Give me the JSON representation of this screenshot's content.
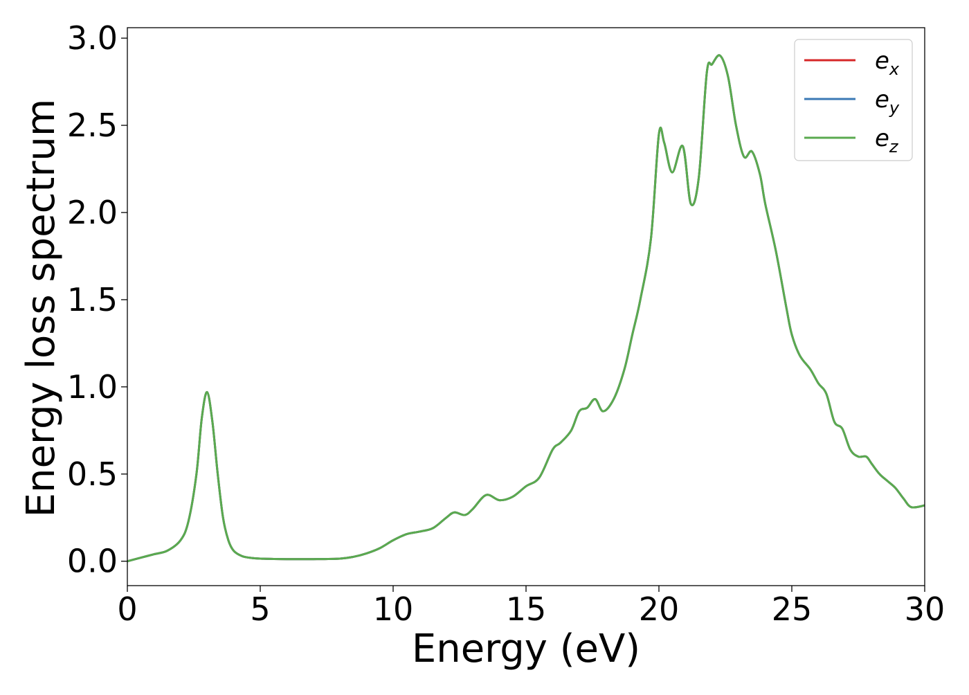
{
  "chart_data": {
    "type": "line",
    "title": "",
    "xlabel": "Energy (eV)",
    "ylabel": "Energy loss spectrum",
    "xlim": [
      0,
      30
    ],
    "ylim": [
      -0.14,
      3.06
    ],
    "xticks": [
      0,
      5,
      10,
      15,
      20,
      25,
      30
    ],
    "xtick_labels": [
      "0",
      "5",
      "10",
      "15",
      "20",
      "25",
      "30"
    ],
    "yticks": [
      0.0,
      0.5,
      1.0,
      1.5,
      2.0,
      2.5,
      3.0
    ],
    "ytick_labels": [
      "0.0",
      "0.5",
      "1.0",
      "1.5",
      "2.0",
      "2.5",
      "3.0"
    ],
    "grid": false,
    "legend": {
      "position": "upper right",
      "entries": [
        {
          "base": "e",
          "sub": "x",
          "color": "#d62728"
        },
        {
          "base": "e",
          "sub": "y",
          "color": "#3a78b5"
        },
        {
          "base": "e",
          "sub": "z",
          "color": "#5aaa4f"
        }
      ]
    },
    "series": [
      {
        "color": "#d62728",
        "x": [
          0,
          0.5,
          1,
          1.5,
          2,
          2.3,
          2.6,
          2.8,
          3,
          3.2,
          3.4,
          3.6,
          3.8,
          4,
          4.3,
          4.6,
          5,
          6,
          7,
          8,
          8.5,
          9,
          9.5,
          10,
          10.5,
          11,
          11.5,
          12,
          12.3,
          12.7,
          13,
          13.5,
          14,
          14.5,
          15,
          15.5,
          16,
          16.3,
          16.7,
          17,
          17.3,
          17.6,
          17.9,
          18.3,
          18.7,
          19,
          19.3,
          19.7,
          20,
          20.2,
          20.5,
          20.9,
          21.2,
          21.5,
          21.8,
          22,
          22.3,
          22.6,
          22.9,
          23.2,
          23.5,
          23.8,
          24,
          24.4,
          24.8,
          25,
          25.3,
          25.7,
          26,
          26.3,
          26.6,
          26.9,
          27.2,
          27.5,
          27.8,
          28,
          28.3,
          28.6,
          28.9,
          29.2,
          29.5,
          30
        ],
        "y": [
          0.0,
          0.02,
          0.04,
          0.06,
          0.12,
          0.23,
          0.5,
          0.82,
          0.97,
          0.8,
          0.5,
          0.25,
          0.12,
          0.06,
          0.03,
          0.02,
          0.015,
          0.012,
          0.012,
          0.015,
          0.025,
          0.045,
          0.075,
          0.12,
          0.155,
          0.17,
          0.19,
          0.25,
          0.28,
          0.265,
          0.3,
          0.38,
          0.35,
          0.37,
          0.43,
          0.48,
          0.64,
          0.68,
          0.75,
          0.86,
          0.88,
          0.93,
          0.86,
          0.93,
          1.1,
          1.3,
          1.5,
          1.85,
          2.45,
          2.4,
          2.23,
          2.38,
          2.05,
          2.2,
          2.8,
          2.85,
          2.9,
          2.78,
          2.5,
          2.32,
          2.35,
          2.22,
          2.05,
          1.78,
          1.45,
          1.3,
          1.18,
          1.1,
          1.02,
          0.96,
          0.8,
          0.76,
          0.64,
          0.6,
          0.6,
          0.56,
          0.5,
          0.46,
          0.42,
          0.36,
          0.31,
          0.32
        ]
      },
      {
        "color": "#3a78b5",
        "x": [
          0,
          0.5,
          1,
          1.5,
          2,
          2.3,
          2.6,
          2.8,
          3,
          3.2,
          3.4,
          3.6,
          3.8,
          4,
          4.3,
          4.6,
          5,
          6,
          7,
          8,
          8.5,
          9,
          9.5,
          10,
          10.5,
          11,
          11.5,
          12,
          12.3,
          12.7,
          13,
          13.5,
          14,
          14.5,
          15,
          15.5,
          16,
          16.3,
          16.7,
          17,
          17.3,
          17.6,
          17.9,
          18.3,
          18.7,
          19,
          19.3,
          19.7,
          20,
          20.2,
          20.5,
          20.9,
          21.2,
          21.5,
          21.8,
          22,
          22.3,
          22.6,
          22.9,
          23.2,
          23.5,
          23.8,
          24,
          24.4,
          24.8,
          25,
          25.3,
          25.7,
          26,
          26.3,
          26.6,
          26.9,
          27.2,
          27.5,
          27.8,
          28,
          28.3,
          28.6,
          28.9,
          29.2,
          29.5,
          30
        ],
        "y": [
          0.0,
          0.02,
          0.04,
          0.06,
          0.12,
          0.23,
          0.5,
          0.82,
          0.97,
          0.8,
          0.5,
          0.25,
          0.12,
          0.06,
          0.03,
          0.02,
          0.015,
          0.012,
          0.012,
          0.015,
          0.025,
          0.045,
          0.075,
          0.12,
          0.155,
          0.17,
          0.19,
          0.25,
          0.28,
          0.265,
          0.3,
          0.38,
          0.35,
          0.37,
          0.43,
          0.48,
          0.64,
          0.68,
          0.75,
          0.86,
          0.88,
          0.93,
          0.86,
          0.93,
          1.1,
          1.3,
          1.5,
          1.85,
          2.45,
          2.4,
          2.23,
          2.38,
          2.05,
          2.2,
          2.8,
          2.85,
          2.9,
          2.78,
          2.5,
          2.32,
          2.35,
          2.22,
          2.05,
          1.78,
          1.45,
          1.3,
          1.18,
          1.1,
          1.02,
          0.96,
          0.8,
          0.76,
          0.64,
          0.6,
          0.6,
          0.56,
          0.5,
          0.46,
          0.42,
          0.36,
          0.31,
          0.32
        ]
      },
      {
        "color": "#5aaa4f",
        "x": [
          0,
          0.5,
          1,
          1.5,
          2,
          2.3,
          2.6,
          2.8,
          3,
          3.2,
          3.4,
          3.6,
          3.8,
          4,
          4.3,
          4.6,
          5,
          6,
          7,
          8,
          8.5,
          9,
          9.5,
          10,
          10.5,
          11,
          11.5,
          12,
          12.3,
          12.7,
          13,
          13.5,
          14,
          14.5,
          15,
          15.5,
          16,
          16.3,
          16.7,
          17,
          17.3,
          17.6,
          17.9,
          18.3,
          18.7,
          19,
          19.3,
          19.7,
          20,
          20.2,
          20.5,
          20.9,
          21.2,
          21.5,
          21.8,
          22,
          22.3,
          22.6,
          22.9,
          23.2,
          23.5,
          23.8,
          24,
          24.4,
          24.8,
          25,
          25.3,
          25.7,
          26,
          26.3,
          26.6,
          26.9,
          27.2,
          27.5,
          27.8,
          28,
          28.3,
          28.6,
          28.9,
          29.2,
          29.5,
          30
        ],
        "y": [
          0.0,
          0.02,
          0.04,
          0.06,
          0.12,
          0.23,
          0.5,
          0.82,
          0.97,
          0.8,
          0.5,
          0.25,
          0.12,
          0.06,
          0.03,
          0.02,
          0.015,
          0.012,
          0.012,
          0.015,
          0.025,
          0.045,
          0.075,
          0.12,
          0.155,
          0.17,
          0.19,
          0.25,
          0.28,
          0.265,
          0.3,
          0.38,
          0.35,
          0.37,
          0.43,
          0.48,
          0.64,
          0.68,
          0.75,
          0.86,
          0.88,
          0.93,
          0.86,
          0.93,
          1.1,
          1.3,
          1.5,
          1.85,
          2.45,
          2.4,
          2.23,
          2.38,
          2.05,
          2.2,
          2.8,
          2.85,
          2.9,
          2.78,
          2.5,
          2.32,
          2.35,
          2.22,
          2.05,
          1.78,
          1.45,
          1.3,
          1.18,
          1.1,
          1.02,
          0.96,
          0.8,
          0.76,
          0.64,
          0.6,
          0.6,
          0.56,
          0.5,
          0.46,
          0.42,
          0.36,
          0.31,
          0.32
        ]
      }
    ]
  }
}
